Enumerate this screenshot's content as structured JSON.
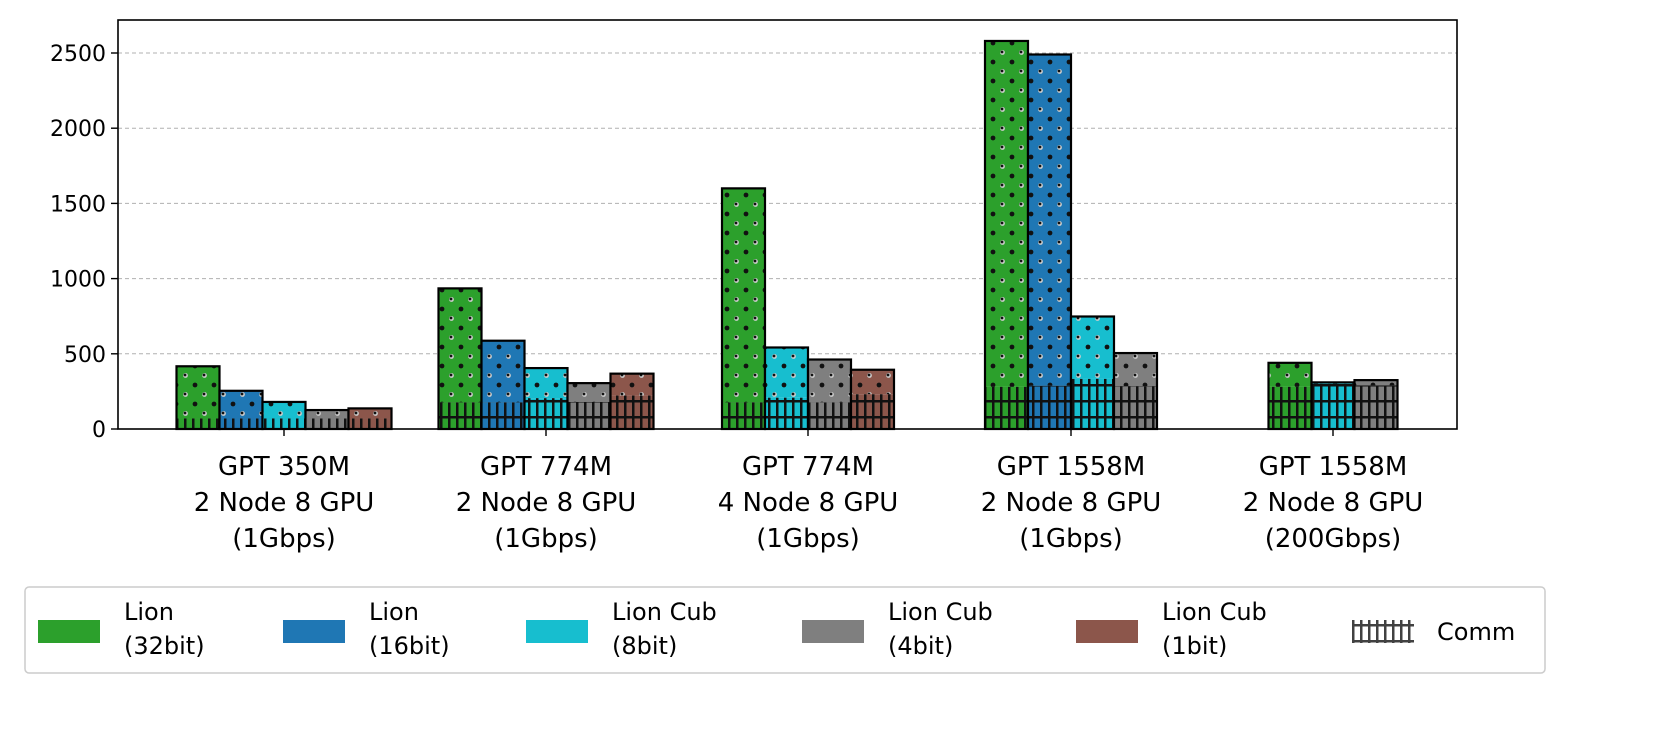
{
  "chart_data": {
    "type": "bar",
    "stacked_component": "Comm",
    "title": "",
    "xlabel": "",
    "ylabel": "",
    "ylim": [
      0,
      2700
    ],
    "yticks": [
      0,
      500,
      1000,
      1500,
      2000,
      2500
    ],
    "grid": true,
    "legend_placement": "bottom",
    "categories": [
      [
        "GPT 350M",
        "2 Node 8 GPU",
        "(1Gbps)"
      ],
      [
        "GPT 774M",
        "2 Node 8 GPU",
        "(1Gbps)"
      ],
      [
        "GPT 774M",
        "4 Node 8 GPU",
        "(1Gbps)"
      ],
      [
        "GPT 1558M",
        "2 Node 8 GPU",
        "(1Gbps)"
      ],
      [
        "GPT 1558M",
        "2 Node 8 GPU",
        "(200Gbps)"
      ]
    ],
    "series": [
      {
        "name": [
          "Lion",
          "(32bit)"
        ],
        "color": "#2ca02c",
        "total": [
          417,
          935,
          1600,
          2580,
          440
        ],
        "comm": [
          70,
          177,
          177,
          280,
          280
        ]
      },
      {
        "name": [
          "Lion",
          "(16bit)"
        ],
        "color": "#1f77b4",
        "total": [
          254,
          587,
          null,
          2490,
          null
        ],
        "comm": [
          70,
          177,
          null,
          287,
          null
        ]
      },
      {
        "name": [
          "Lion Cub",
          "(8bit)"
        ],
        "color": "#17becf",
        "total": [
          180,
          405,
          542,
          748,
          310
        ],
        "comm": [
          70,
          205,
          208,
          333,
          300
        ]
      },
      {
        "name": [
          "Lion Cub",
          "(4bit)"
        ],
        "color": "#7f7f7f",
        "total": [
          126,
          305,
          462,
          505,
          325
        ],
        "comm": [
          70,
          180,
          177,
          285,
          290
        ]
      },
      {
        "name": [
          "Lion Cub",
          "(1bit)"
        ],
        "color": "#8c564b",
        "total": [
          137,
          368,
          394,
          null,
          null
        ],
        "comm": [
          70,
          222,
          231,
          null,
          null
        ]
      }
    ],
    "comm_legend_label": "Comm"
  }
}
